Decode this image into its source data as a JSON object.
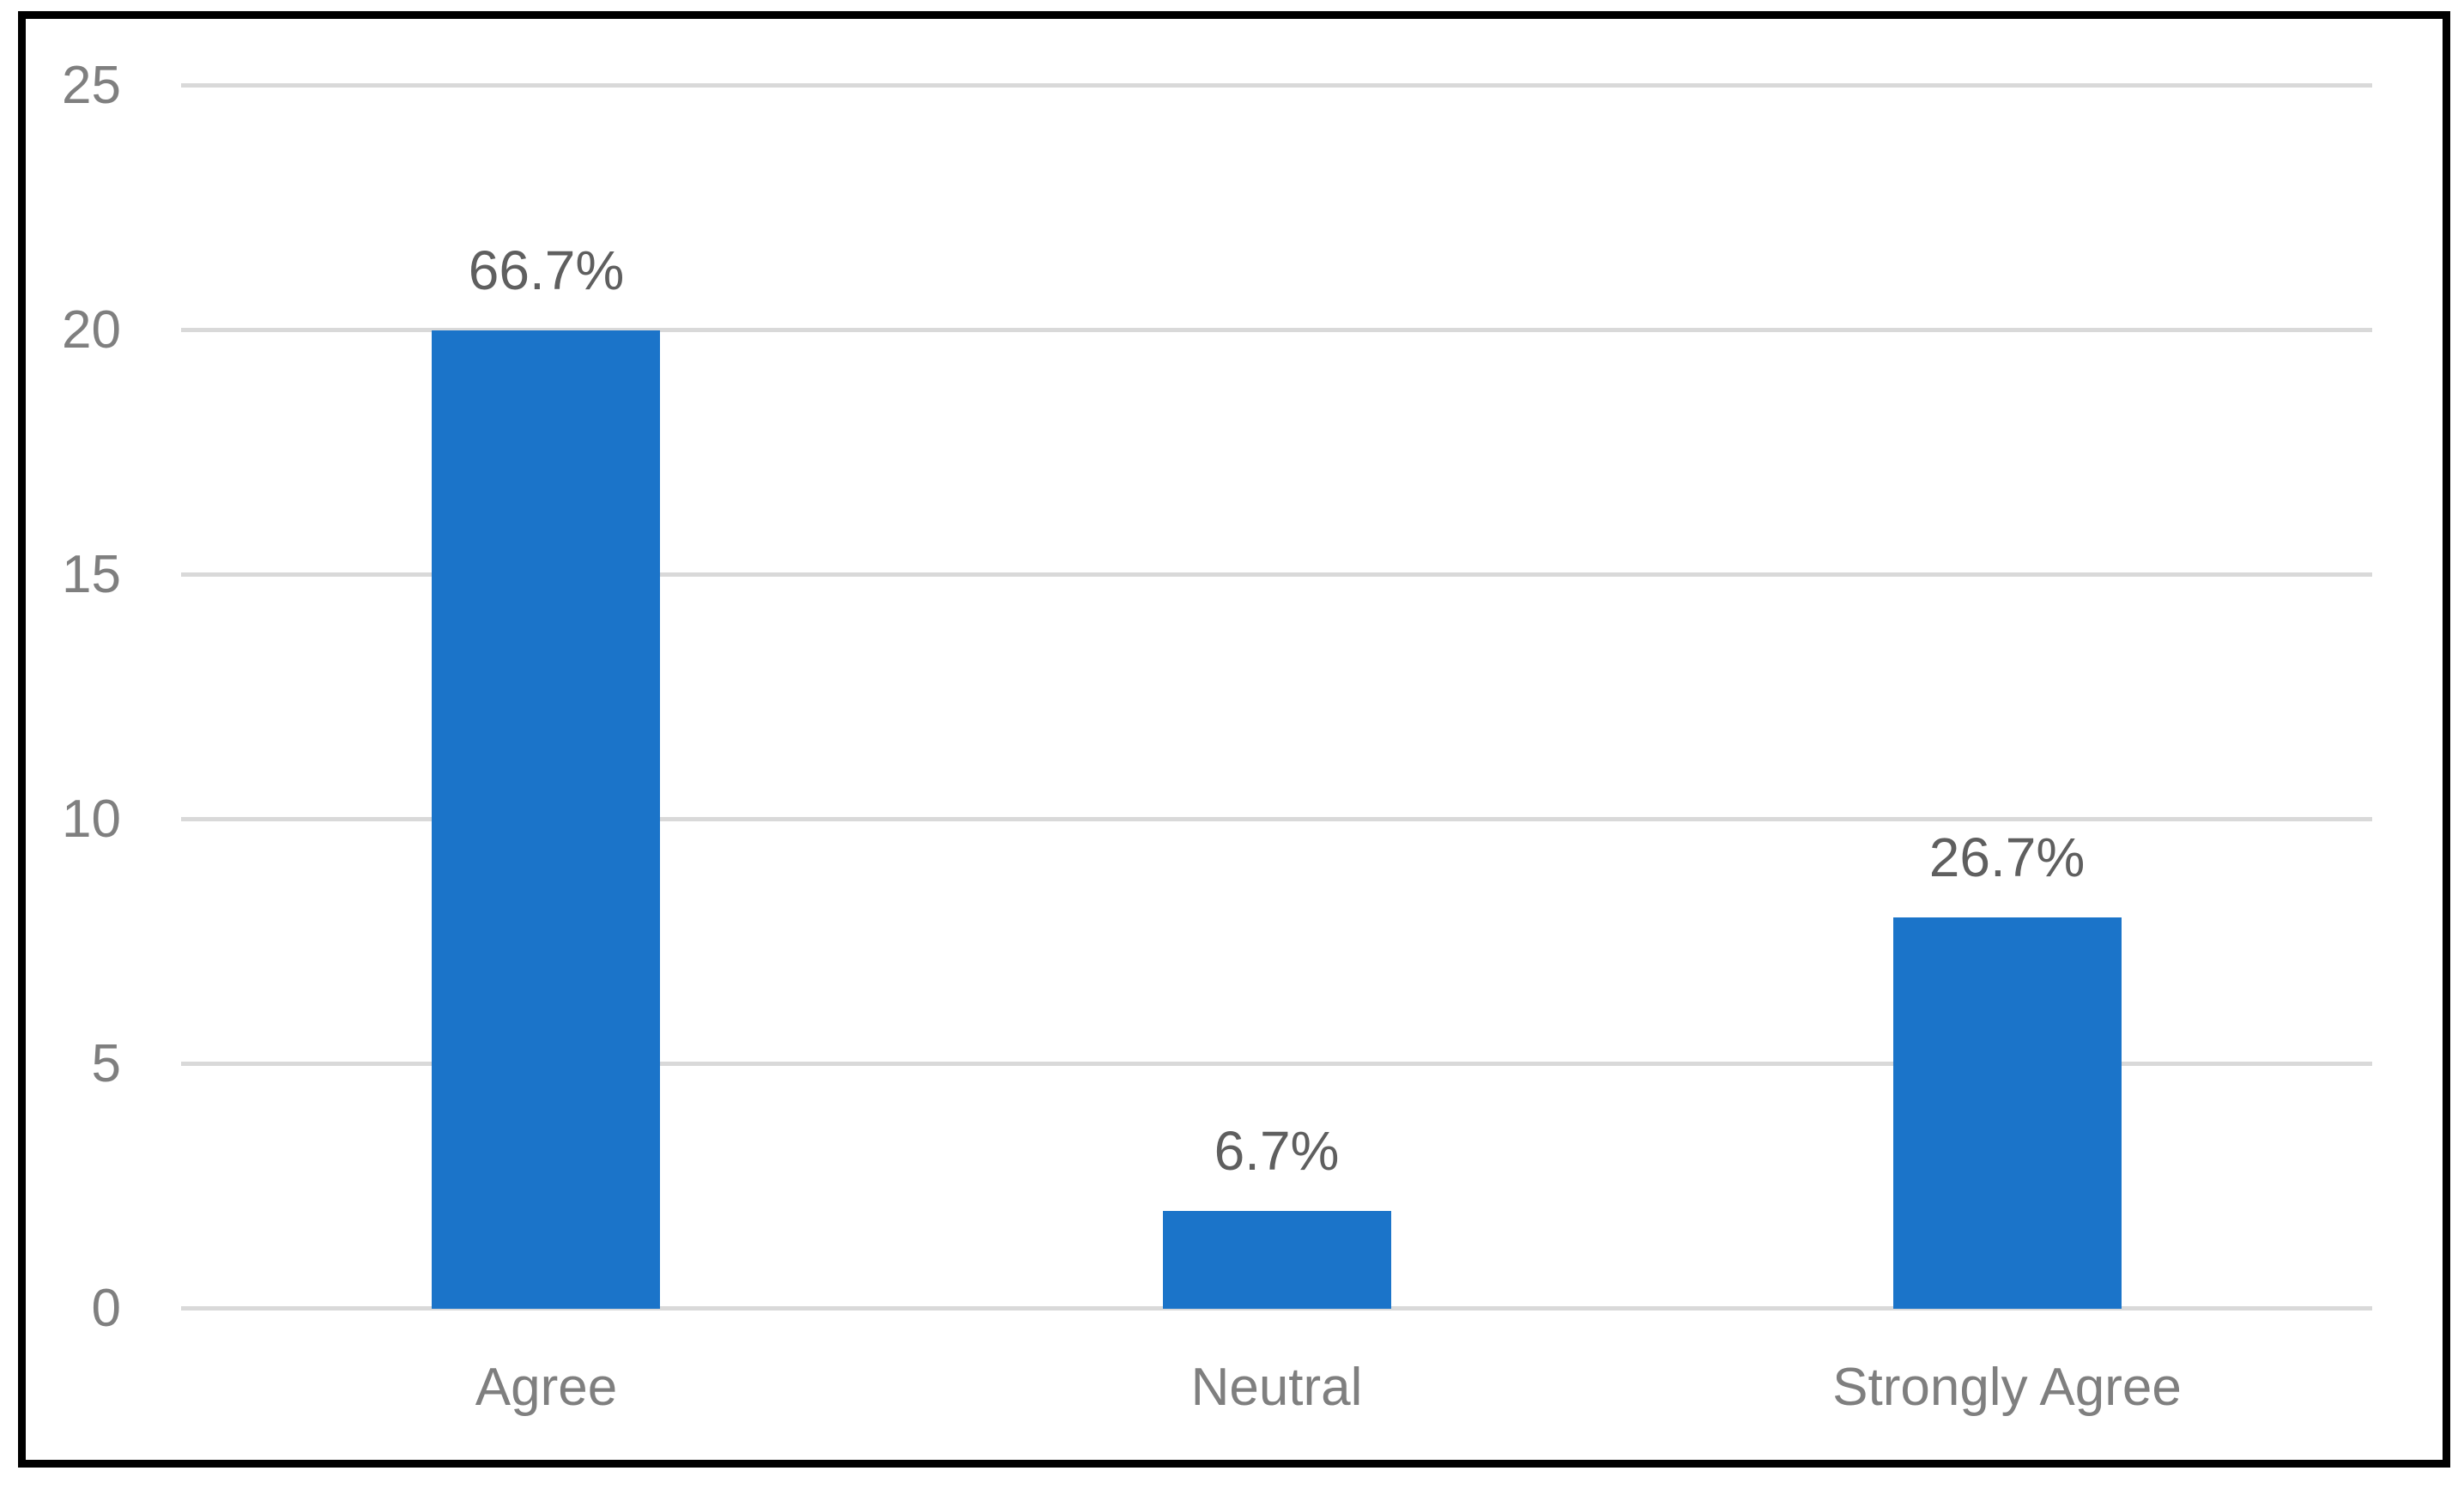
{
  "chart_data": {
    "type": "bar",
    "title": "",
    "xlabel": "",
    "ylabel": "",
    "categories": [
      "Agree",
      "Neutral",
      "Strongly Agree"
    ],
    "values": [
      20,
      2,
      8
    ],
    "data_labels": [
      "66.7%",
      "6.7%",
      "26.7%"
    ],
    "ylim": [
      0,
      25
    ],
    "yticks": [
      0,
      5,
      10,
      15,
      20,
      25
    ],
    "grid": "horizontal",
    "legend": "none",
    "colors": {
      "bar_fill": "#1B74C9",
      "gridline": "#D9D9D9",
      "axis_tick_label": "#7F7F7F",
      "category_label": "#7F7F7F",
      "data_label": "#5F5F5F",
      "frame_border": "#000000",
      "background": "#FFFFFF"
    }
  }
}
